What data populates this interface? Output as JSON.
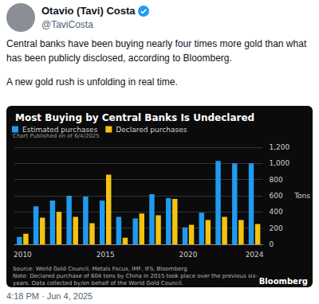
{
  "tweet": {
    "author": "Otavio (Tavi) Costa",
    "handle": "@TaviCosta",
    "text": [
      "Central banks have been buying nearly four times more gold than what has been publicly disclosed, according to Bloomberg.",
      "A new gold rush is unfolding in real time."
    ],
    "timestamp": "4:18 PM · Jun 4, 2025"
  },
  "chart_data": {
    "type": "bar",
    "title": "Most Buying by Central Banks Is Undeclared",
    "subtitle": "Chart Published on of 6/4/2025",
    "categories": [
      "2010",
      null,
      null,
      null,
      null,
      "2015",
      null,
      null,
      null,
      null,
      "2020",
      null,
      null,
      null,
      "2024"
    ],
    "series": [
      {
        "name": "Estimated purchases",
        "color": "#1e9bf0",
        "values": [
          90,
          470,
          540,
          600,
          590,
          540,
          340,
          320,
          620,
          570,
          210,
          390,
          1030,
          1000,
          1000
        ]
      },
      {
        "name": "Declared purchases",
        "color": "#f5c20f",
        "values": [
          130,
          330,
          400,
          340,
          260,
          860,
          80,
          380,
          360,
          560,
          240,
          300,
          340,
          300,
          250
        ]
      }
    ],
    "ylabel": "Tons",
    "ylim": [
      0,
      1200
    ],
    "yticks": [
      0,
      200,
      400,
      600,
      800,
      {
        "value": 1000,
        "label": "1,000"
      },
      {
        "value": 1200,
        "label": "1,200"
      }
    ],
    "grid": true,
    "legend": "top-left",
    "source": "Source: World Gold Council, Metals Focus, IMF, IFS, Bloomberg",
    "note": "Note: Declared purchase of 604 tons by China in 2015 took place over the previous six-years. Data collected by/on behalf of the World Gold Council.",
    "credit": "Bloomberg"
  }
}
